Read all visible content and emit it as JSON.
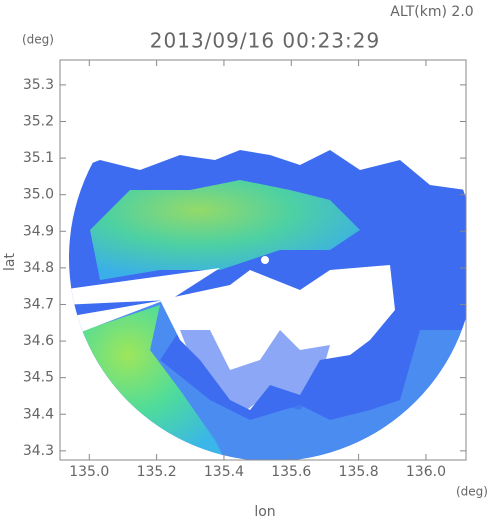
{
  "chart_data": {
    "type": "radar-map",
    "altitude_label": "ALT(km) 2.0",
    "title": "2013/09/16 00:23:29",
    "y_unit": "(deg)",
    "x_unit": "(deg)",
    "ylabel": "lat",
    "xlabel": "lon",
    "xlim": [
      134.913,
      136.119
    ],
    "ylim": [
      34.275,
      35.368
    ],
    "xticks": [
      {
        "value": 135.0,
        "label": "135.0"
      },
      135.2,
      135.4,
      135.6,
      135.8,
      {
        "value": 136.0,
        "label": "136.0"
      }
    ],
    "yticks": [
      34.3,
      34.4,
      34.5,
      34.6,
      34.7,
      34.8,
      34.9,
      {
        "value": 35.0,
        "label": "35.0"
      },
      35.1,
      35.2,
      35.3
    ]
  }
}
